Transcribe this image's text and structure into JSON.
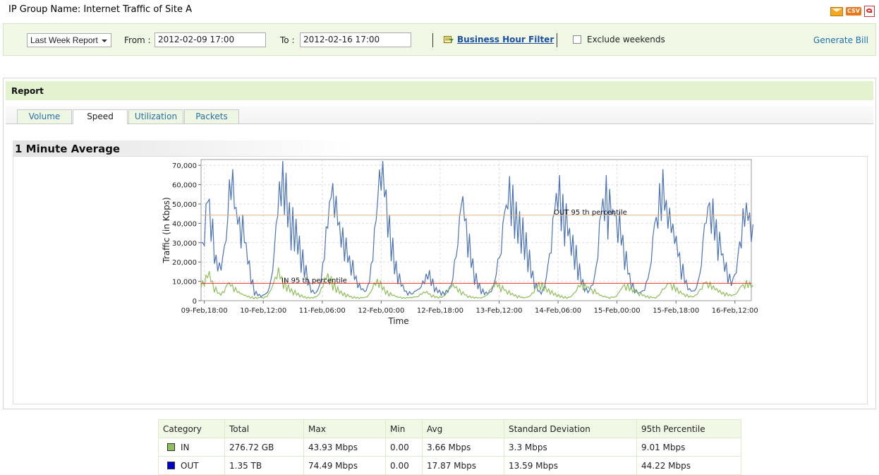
{
  "header": {
    "label": "IP Group Name:",
    "group_name": "Internet Traffic of Site A",
    "export_csv_label": "CSV"
  },
  "filters": {
    "report_period": "Last Week Report",
    "from_label": "From :",
    "from_value": "2012-02-09 17:00",
    "to_label": "To :",
    "to_value": "2012-02-16 17:00",
    "business_hour_filter": "Business Hour Filter",
    "exclude_weekends_label": "Exclude weekends",
    "exclude_weekends_checked": false,
    "generate_bill": "Generate Bill"
  },
  "report": {
    "title": "Report",
    "tabs": [
      {
        "label": "Volume",
        "active": false
      },
      {
        "label": "Speed",
        "active": true
      },
      {
        "label": "Utilization",
        "active": false
      },
      {
        "label": "Packets",
        "active": false
      }
    ],
    "section_title": "1 Minute Average"
  },
  "chart_data": {
    "type": "line",
    "xlabel": "Time",
    "ylabel": "Traffic (in Kbps)",
    "ylim": [
      0,
      73000
    ],
    "y_ticks": [
      "0",
      "10,000",
      "20,000",
      "30,000",
      "40,000",
      "50,000",
      "60,000",
      "70,000"
    ],
    "y_tick_values": [
      0,
      10000,
      20000,
      30000,
      40000,
      50000,
      60000,
      70000
    ],
    "x_ticks": [
      "09-Feb,18:00",
      "10-Feb,12:00",
      "11-Feb,06:00",
      "12-Feb,00:00",
      "12-Feb,18:00",
      "13-Feb,12:00",
      "14-Feb,06:00",
      "15-Feb,00:00",
      "15-Feb,18:00",
      "16-Feb,12:00"
    ],
    "x_hours_start": 0,
    "x_hours_end": 168,
    "x_tick_hours": [
      1,
      19,
      37,
      55,
      73,
      91,
      109,
      127,
      145,
      163
    ],
    "grid": true,
    "series": [
      {
        "name": "OUT",
        "color": "#4a72b8",
        "values": [
          30000,
          42000,
          52000,
          38000,
          22000,
          18000,
          20000,
          30000,
          55000,
          62000,
          48000,
          42000,
          38000,
          30000,
          20000,
          10000,
          4000,
          3000,
          2500,
          3500,
          6000,
          14000,
          35000,
          55000,
          70000,
          58000,
          46000,
          40000,
          36000,
          30000,
          22000,
          16000,
          9000,
          5000,
          4000,
          7000,
          16000,
          32000,
          46000,
          58000,
          50000,
          40000,
          34000,
          28000,
          22000,
          18000,
          12000,
          8000,
          6000,
          5000,
          9000,
          20000,
          40000,
          62000,
          72000,
          56000,
          40000,
          28000,
          18000,
          12000,
          8000,
          5000,
          4000,
          3500,
          5000,
          6000,
          9000,
          12000,
          14000,
          10000,
          6000,
          5000,
          4000,
          4500,
          6000,
          10000,
          22000,
          38000,
          52000,
          42000,
          30000,
          20000,
          12000,
          8000,
          5000,
          4000,
          4000,
          6000,
          12000,
          22000,
          34000,
          48000,
          58000,
          52000,
          44000,
          40000,
          36000,
          30000,
          22000,
          14000,
          8000,
          5000,
          5000,
          10000,
          22000,
          36000,
          52000,
          58000,
          48000,
          42000,
          36000,
          30000,
          24000,
          16000,
          10000,
          6000,
          5000,
          8000,
          16000,
          34000,
          50000,
          56000,
          48000,
          46000,
          44000,
          40000,
          32000,
          22000,
          14000,
          8000,
          5000,
          4000,
          5000,
          8000,
          14000,
          28000,
          42000,
          52000,
          58000,
          50000,
          44000,
          38000,
          32000,
          24000,
          16000,
          10000,
          6000,
          5000,
          6000,
          12000,
          26000,
          40000,
          50000,
          46000,
          38000,
          30000,
          24000,
          18000,
          12000,
          10000,
          14000,
          28000,
          40000,
          46000,
          44000,
          36000
        ],
        "percentile_95": 44220,
        "percentile_label": "OUT 95 th percentile"
      },
      {
        "name": "IN",
        "color": "#8fbf5a",
        "values": [
          9000,
          11000,
          14000,
          10000,
          6000,
          4000,
          4000,
          6000,
          9000,
          8000,
          6000,
          4500,
          3500,
          2800,
          2200,
          1800,
          1500,
          1500,
          1600,
          1800,
          3000,
          6000,
          11000,
          15000,
          12000,
          9000,
          7000,
          5500,
          4500,
          3500,
          2600,
          2000,
          1600,
          1500,
          1700,
          2500,
          5500,
          10000,
          13000,
          11000,
          8000,
          6000,
          4500,
          3500,
          2800,
          2200,
          1800,
          1600,
          1500,
          1600,
          2000,
          4000,
          8000,
          10000,
          9000,
          6500,
          4500,
          3500,
          2800,
          2200,
          1800,
          1500,
          1500,
          1600,
          1800,
          2000,
          3000,
          4000,
          4500,
          3500,
          2500,
          2000,
          1800,
          2000,
          3500,
          6000,
          8000,
          7000,
          5500,
          4000,
          3000,
          2200,
          1800,
          1600,
          1500,
          1600,
          2500,
          4500,
          7000,
          9000,
          8000,
          6500,
          5500,
          4500,
          3500,
          2800,
          2200,
          1800,
          1600,
          2000,
          3500,
          6000,
          8500,
          8000,
          6500,
          5500,
          4500,
          3500,
          2800,
          2200,
          1800,
          1600,
          2200,
          4000,
          7000,
          8500,
          7500,
          7000,
          6000,
          5000,
          3800,
          2800,
          2200,
          1800,
          1600,
          1800,
          3000,
          5500,
          8000,
          7500,
          6500,
          5500,
          4500,
          3500,
          2800,
          2200,
          1800,
          1600,
          2000,
          3500,
          6000,
          8000,
          9000,
          7500,
          6000,
          4500,
          3500,
          2800,
          2200,
          2000,
          3000,
          5500,
          8000,
          9500,
          8500,
          7000,
          6000,
          5000,
          4000,
          3500,
          3000,
          2800,
          3500,
          6000,
          8000,
          9000,
          8500,
          7500
        ],
        "percentile_95": 9010,
        "percentile_label": "IN 95 th percentile"
      }
    ]
  },
  "stats_table": {
    "headers": [
      "Category",
      "Total",
      "Max",
      "Min",
      "Avg",
      "Standard Deviation",
      "95th Percentile"
    ],
    "rows": [
      {
        "category": "IN",
        "color": "#8fbf5a",
        "total": "276.72 GB",
        "max": "43.93 Mbps",
        "min": "0.00",
        "avg": "3.66 Mbps",
        "std": "3.3 Mbps",
        "p95": "9.01 Mbps"
      },
      {
        "category": "OUT",
        "color": "#0000cc",
        "total": "1.35 TB",
        "max": "74.49 Mbps",
        "min": "0.00",
        "avg": "17.87 Mbps",
        "std": "13.59 Mbps",
        "p95": "44.22 Mbps"
      }
    ]
  }
}
